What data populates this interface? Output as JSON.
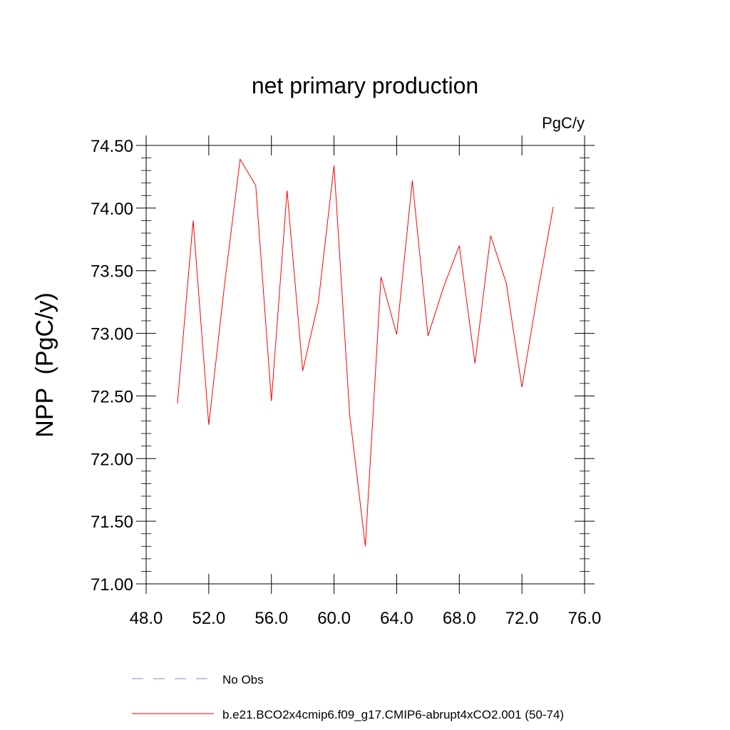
{
  "chart_data": {
    "type": "line",
    "title": "net primary production",
    "units": "PgC/y",
    "ylabel": "NPP  (PgC/y)",
    "xlabel": "",
    "xlim": [
      48,
      76
    ],
    "ylim": [
      71.0,
      74.5
    ],
    "xticks": [
      "48.0",
      "52.0",
      "56.0",
      "60.0",
      "64.0",
      "68.0",
      "72.0",
      "76.0"
    ],
    "yticks": [
      "71.00",
      "71.50",
      "72.00",
      "72.50",
      "73.00",
      "73.50",
      "74.00",
      "74.50"
    ],
    "grid": false,
    "legend_position": "bottom",
    "series": [
      {
        "name": "b.e21.BCO2x4cmip6.f09_g17.CMIP6-abrupt4xCO2.001 (50-74)",
        "color": "#ff0000",
        "style": "solid",
        "x": [
          50,
          51,
          52,
          53,
          54,
          55,
          56,
          57,
          58,
          59,
          60,
          61,
          62,
          63,
          64,
          65,
          66,
          67,
          68,
          69,
          70,
          71,
          72,
          73,
          74
        ],
        "y": [
          72.44,
          73.9,
          72.27,
          73.38,
          74.39,
          74.18,
          72.46,
          74.14,
          72.7,
          73.25,
          74.34,
          72.35,
          71.3,
          73.45,
          72.99,
          74.22,
          72.98,
          73.37,
          73.7,
          72.76,
          73.78,
          73.4,
          72.57,
          73.32,
          74.01
        ]
      },
      {
        "name": "No Obs",
        "color": "#8888cc",
        "style": "dashed",
        "x": [],
        "y": []
      }
    ]
  }
}
